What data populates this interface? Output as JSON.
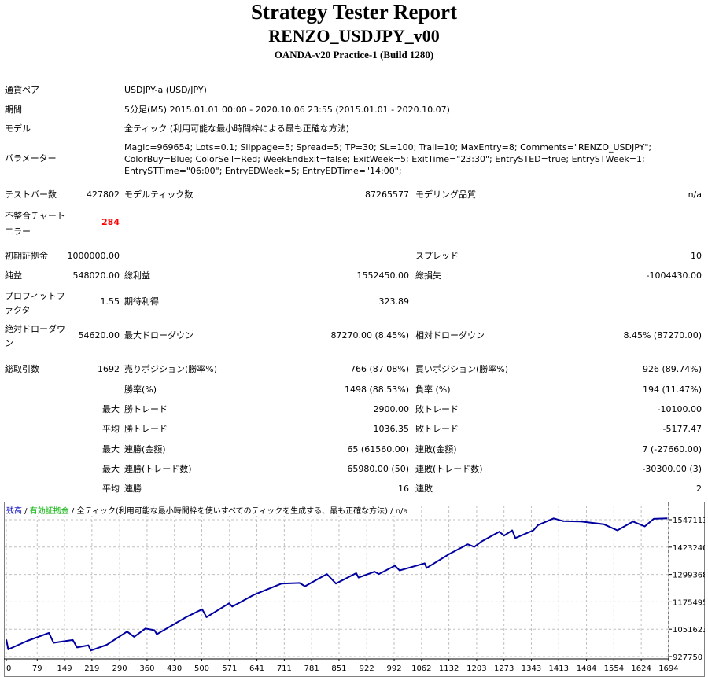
{
  "header": {
    "title": "Strategy Tester Report",
    "ea_name": "RENZO_USDJPY_v00",
    "server": "OANDA-v20 Practice-1 (Build 1280)"
  },
  "info": {
    "symbol": {
      "label": "通貨ペア",
      "value": "USDJPY-a (USD/JPY)"
    },
    "period": {
      "label": "期間",
      "value": "5分足(M5) 2015.01.01 00:00 - 2020.10.06 23:55 (2015.01.01 - 2020.10.07)"
    },
    "model": {
      "label": "モデル",
      "value": "全ティック (利用可能な最小時間枠による最も正確な方法)"
    },
    "parameters": {
      "label": "パラメーター",
      "value": "Magic=969654; Lots=0.1; Slippage=5; Spread=5; TP=30; SL=100; Trail=10; MaxEntry=8; Comments=\"RENZO_USDJPY\"; ColorBuy=Blue; ColorSell=Red; WeekEndExit=false; ExitWeek=5; ExitTime=\"23:30\"; EntrySTED=true; EntrySTWeek=1; EntrySTTime=\"06:00\"; EntryEDWeek=5; EntryEDTime=\"14:00\";"
    }
  },
  "stats": {
    "bars": {
      "label": "テストバー数",
      "value": "427802"
    },
    "ticks": {
      "label": "モデルティック数",
      "value": "87265577"
    },
    "quality": {
      "label": "モデリング品質",
      "value": "n/a"
    },
    "mismatch": {
      "label": "不整合チャートエラー",
      "value": "284"
    },
    "deposit": {
      "label": "初期証拠金",
      "value": "1000000.00"
    },
    "spread": {
      "label": "スプレッド",
      "value": "10"
    },
    "net_profit": {
      "label": "純益",
      "value": "548020.00"
    },
    "gross_profit": {
      "label": "総利益",
      "value": "1552450.00"
    },
    "gross_loss": {
      "label": "総損失",
      "value": "-1004430.00"
    },
    "profit_factor": {
      "label": "プロフィットファクタ",
      "value": "1.55"
    },
    "expected_payoff": {
      "label": "期待利得",
      "value": "323.89"
    },
    "abs_dd": {
      "label": "絶対ドローダウン",
      "value": "54620.00"
    },
    "max_dd": {
      "label": "最大ドローダウン",
      "value": "87270.00 (8.45%)"
    },
    "rel_dd": {
      "label": "相対ドローダウン",
      "value": "8.45% (87270.00)"
    },
    "total_trades": {
      "label": "総取引数",
      "value": "1692"
    },
    "short": {
      "label": "売りポジション(勝率%)",
      "value": "766 (87.08%)"
    },
    "long": {
      "label": "買いポジション(勝率%)",
      "value": "926 (89.74%)"
    },
    "win_rate": {
      "label": "勝率(%)",
      "value": "1498 (88.53%)"
    },
    "loss_rate": {
      "label": "負率 (%)",
      "value": "194 (11.47%)"
    },
    "largest_win": {
      "prefix": "最大",
      "label": "勝トレード",
      "value": "2900.00"
    },
    "largest_loss": {
      "label": "敗トレード",
      "value": "-10100.00"
    },
    "avg_win": {
      "prefix": "平均",
      "label": "勝トレード",
      "value": "1036.35"
    },
    "avg_loss": {
      "label": "敗トレード",
      "value": "-5177.47"
    },
    "max_consec_wins": {
      "prefix": "最大",
      "label": "連勝(金額)",
      "value": "65 (61560.00)"
    },
    "max_consec_losses": {
      "label": "連敗(金額)",
      "value": "7 (-27660.00)"
    },
    "max_consec_profit": {
      "prefix": "最大",
      "label": "連勝(トレード数)",
      "value": "65980.00 (50)"
    },
    "max_consec_loss": {
      "label": "連敗(トレード数)",
      "value": "-30300.00 (3)"
    },
    "avg_consec_wins": {
      "prefix": "平均",
      "label": "連勝",
      "value": "16"
    },
    "avg_consec_losses": {
      "label": "連敗",
      "value": "2"
    }
  },
  "chart_data": {
    "type": "line",
    "legend": {
      "balance": "残高",
      "sep1": " / ",
      "equity": "有効証拠金",
      "sep2": " / ",
      "model": "全ティック(利用可能な最小時間枠を使いすべてのティックを生成する、最も正確な方法)",
      "sep3": " / ",
      "quality": "n/a"
    },
    "colors": {
      "balance": "#0000a0",
      "equity": "#00b000",
      "grid": "#c0c0c0",
      "balance_legend": "#0000c0"
    },
    "xlim": [
      0,
      1720
    ],
    "ylim": [
      927750,
      1580000
    ],
    "x_ticks": [
      "0",
      "79",
      "149",
      "219",
      "290",
      "360",
      "430",
      "500",
      "571",
      "641",
      "711",
      "781",
      "851",
      "922",
      "992",
      "1062",
      "1132",
      "1203",
      "1273",
      "1343",
      "1413",
      "1484",
      "1554",
      "1624",
      "1694"
    ],
    "y_ticks": [
      "1547113",
      "1423240",
      "1299368",
      "1175495",
      "1051623",
      "927750"
    ],
    "series": [
      {
        "name": "残高",
        "x": [
          0,
          5,
          54,
          109,
          121,
          170,
          181,
          210,
          216,
          257,
          309,
          327,
          356,
          379,
          385,
          460,
          501,
          512,
          570,
          578,
          634,
          704,
          750,
          764,
          820,
          843,
          895,
          901,
          942,
          953,
          994,
          1006,
          1070,
          1075,
          1133,
          1180,
          1197,
          1215,
          1261,
          1273,
          1294,
          1302,
          1348,
          1360,
          1400,
          1424,
          1470,
          1528,
          1563,
          1603,
          1633,
          1656,
          1691
        ],
        "y": [
          1005000,
          960000,
          999000,
          1035000,
          990000,
          1003000,
          969000,
          979000,
          955000,
          981000,
          1041000,
          1017000,
          1055000,
          1047000,
          1029000,
          1106000,
          1142000,
          1106000,
          1169000,
          1154000,
          1208000,
          1258000,
          1261000,
          1246000,
          1301000,
          1258000,
          1305000,
          1285000,
          1312000,
          1301000,
          1339000,
          1317000,
          1350000,
          1329000,
          1392000,
          1436000,
          1424000,
          1448000,
          1493000,
          1475000,
          1499000,
          1464000,
          1499000,
          1523000,
          1553000,
          1541000,
          1539000,
          1527000,
          1499000,
          1539000,
          1517000,
          1551000,
          1553000
        ]
      }
    ]
  }
}
